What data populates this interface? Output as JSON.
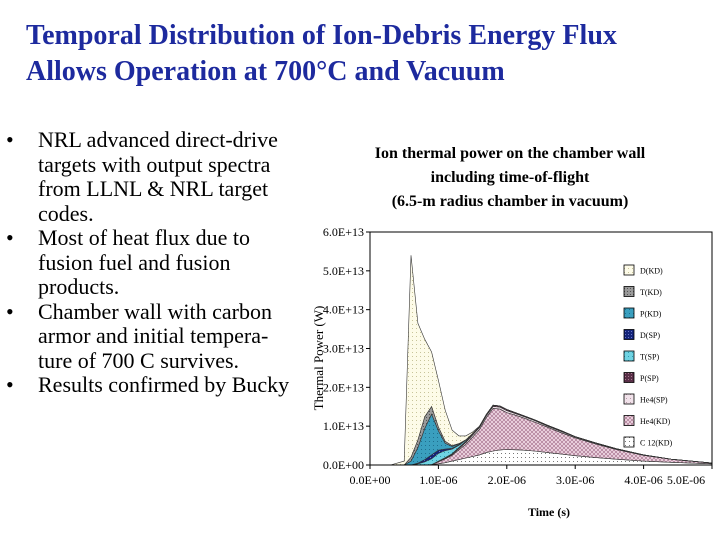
{
  "slide": {
    "title_lines": [
      "Temporal Distribution of Ion-Debris Energy Flux",
      "Allows Operation at 700°C and Vacuum"
    ],
    "bullets": [
      {
        "lines": [
          "NRL advanced direct-drive",
          "targets with output spectra",
          "from LLNL & NRL target",
          "codes."
        ]
      },
      {
        "lines": [
          "Most of heat flux due to",
          "fusion fuel and fusion",
          "products."
        ]
      },
      {
        "lines": [
          "Chamber wall with carbon",
          "armor and initial tempera-",
          "ture of 700 C survives."
        ]
      },
      {
        "lines": [
          "Results confirmed by Bucky"
        ]
      }
    ],
    "bullet_glyph": "•"
  },
  "chart_data": {
    "type": "area",
    "title_lines": [
      "Ion thermal power on the chamber wall",
      "including time-of-flight",
      "(6.5-m radius chamber in vacuum)"
    ],
    "xlabel": "Time (s)",
    "ylabel": "Thermal Power (W)",
    "xlim": [
      0,
      5e-06
    ],
    "ylim": [
      0,
      60000000000000.0
    ],
    "x_ticks": [
      "0.0E+00",
      "1.0E-06",
      "2.0E-06",
      "3.0E-06",
      "4.0E-06",
      "5.0E-06"
    ],
    "y_ticks": [
      "0.0E+00",
      "1.0E+13",
      "2.0E+13",
      "3.0E+13",
      "4.0E+13",
      "5.0E+13",
      "6.0E+13"
    ],
    "stacked": true,
    "legend_position": "right",
    "x": [
      0,
      3e-07,
      5e-07,
      6e-07,
      7e-07,
      8e-07,
      9e-07,
      1e-06,
      1.1e-06,
      1.2e-06,
      1.3e-06,
      1.4e-06,
      1.5e-06,
      1.6e-06,
      1.7e-06,
      1.8e-06,
      1.9e-06,
      2e-06,
      2.2e-06,
      2.4e-06,
      2.6e-06,
      2.8e-06,
      3e-06,
      3.3e-06,
      3.6e-06,
      4e-06,
      4.4e-06,
      5e-06
    ],
    "series": [
      {
        "name": "C 12(KD)",
        "pattern": "dots",
        "values": [
          0,
          0,
          0,
          0,
          0,
          0,
          100000000000.0,
          300000000000.0,
          600000000000.0,
          1000000000000.0,
          1400000000000.0,
          1800000000000.0,
          2200000000000.0,
          2600000000000.0,
          3200000000000.0,
          3600000000000.0,
          3900000000000.0,
          4000000000000.0,
          3900000000000.0,
          3600000000000.0,
          3200000000000.0,
          2800000000000.0,
          2400000000000.0,
          1900000000000.0,
          1500000000000.0,
          1000000000000.0,
          700000000000.0,
          300000000000.0
        ]
      },
      {
        "name": "He4(KD)",
        "pattern": "crosshatch",
        "values": [
          0,
          0,
          0,
          0,
          0,
          0,
          0,
          500000000000.0,
          1000000000000.0,
          1500000000000.0,
          2500000000000.0,
          3500000000000.0,
          5000000000000.0,
          6500000000000.0,
          9000000000000.0,
          11000000000000.0,
          10500000000000.0,
          9500000000000.0,
          8500000000000.0,
          7500000000000.0,
          6500000000000.0,
          5500000000000.0,
          4600000000000.0,
          3500000000000.0,
          2500000000000.0,
          1500000000000.0,
          800000000000.0,
          200000000000.0
        ]
      },
      {
        "name": "He4(SP)",
        "pattern": "light",
        "values": [
          0,
          0,
          0,
          0,
          0,
          0,
          0,
          100000000000.0,
          100000000000.0,
          200000000000.0,
          300000000000.0,
          500000000000.0,
          500000000000.0,
          500000000000.0,
          500000000000.0,
          500000000000.0,
          500000000000.0,
          500000000000.0,
          400000000000.0,
          400000000000.0,
          300000000000.0,
          300000000000.0,
          200000000000.0,
          200000000000.0,
          100000000000.0,
          100000000000.0,
          0,
          0
        ]
      },
      {
        "name": "P(SP)",
        "pattern": "dark",
        "values": [
          0,
          0,
          0,
          0,
          0,
          0,
          0,
          100000000000.0,
          200000000000.0,
          200000000000.0,
          300000000000.0,
          300000000000.0,
          300000000000.0,
          300000000000.0,
          300000000000.0,
          300000000000.0,
          300000000000.0,
          300000000000.0,
          200000000000.0,
          200000000000.0,
          200000000000.0,
          200000000000.0,
          100000000000.0,
          100000000000.0,
          100000000000.0,
          0,
          0,
          0
        ]
      },
      {
        "name": "T(SP)",
        "pattern": "cyan",
        "values": [
          0,
          0,
          0,
          0,
          300000000000.0,
          800000000000.0,
          1500000000000.0,
          2000000000000.0,
          1800000000000.0,
          1200000000000.0,
          600000000000.0,
          300000000000.0,
          100000000000.0,
          0,
          0,
          0,
          0,
          0,
          0,
          0,
          0,
          0,
          0,
          0,
          0,
          0,
          0,
          0
        ]
      },
      {
        "name": "D(SP)",
        "pattern": "navy",
        "values": [
          0,
          0,
          0,
          0,
          200000000000.0,
          600000000000.0,
          1000000000000.0,
          800000000000.0,
          400000000000.0,
          200000000000.0,
          100000000000.0,
          0,
          0,
          0,
          0,
          0,
          0,
          0,
          0,
          0,
          0,
          0,
          0,
          0,
          0,
          0,
          0,
          0
        ]
      },
      {
        "name": "P(KD)",
        "pattern": "teal",
        "values": [
          0,
          0,
          0,
          1000000000000.0,
          4000000000000.0,
          8000000000000.0,
          10500000000000.0,
          5000000000000.0,
          1500000000000.0,
          500000000000.0,
          200000000000.0,
          100000000000.0,
          0,
          0,
          0,
          0,
          0,
          0,
          0,
          0,
          0,
          0,
          0,
          0,
          0,
          0,
          0,
          0
        ]
      },
      {
        "name": "T(KD)",
        "pattern": "gray",
        "values": [
          0,
          0,
          0,
          1000000000000.0,
          2000000000000.0,
          3000000000000.0,
          2000000000000.0,
          1000000000000.0,
          500000000000.0,
          200000000000.0,
          100000000000.0,
          0,
          0,
          0,
          0,
          0,
          0,
          0,
          0,
          0,
          0,
          0,
          0,
          0,
          0,
          0,
          0,
          0
        ]
      },
      {
        "name": "D(KD)",
        "pattern": "cream",
        "values": [
          0,
          0,
          1000000000000.0,
          52000000000000.0,
          30000000000000.0,
          20000000000000.0,
          14000000000000.0,
          12000000000000.0,
          8000000000000.0,
          4000000000000.0,
          2000000000000.0,
          1000000000000.0,
          400000000000.0,
          100000000000.0,
          0,
          0,
          0,
          0,
          0,
          0,
          0,
          0,
          0,
          0,
          0,
          0,
          0,
          0
        ]
      }
    ],
    "legend_order": [
      "D(KD)",
      "T(KD)",
      "P(KD)",
      "D(SP)",
      "T(SP)",
      "P(SP)",
      "He4(SP)",
      "He4(KD)",
      "C 12(KD)"
    ]
  }
}
